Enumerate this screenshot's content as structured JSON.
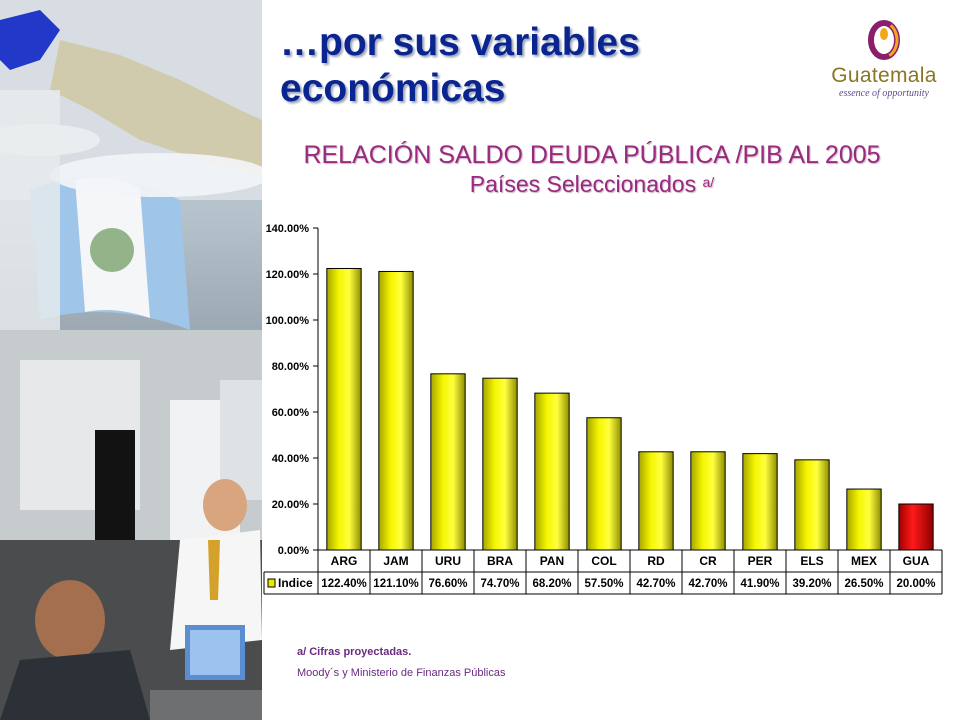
{
  "slide": {
    "title": "…por sus variables económicas",
    "logo_name": "Guatemala",
    "logo_tagline": "essence of opportunity",
    "colors": {
      "title": "#0b2590",
      "subtitle": "#9a2a7e",
      "bar": "#eaea00",
      "bar_highlight": "#e00000"
    }
  },
  "chart_data": {
    "type": "bar",
    "title": "RELACIÓN SALDO DEUDA PÚBLICA /PIB AL 2005",
    "subtitle": "Países Seleccionados",
    "subtitle_note": "a/",
    "categories": [
      "ARG",
      "JAM",
      "URU",
      "BRA",
      "PAN",
      "COL",
      "RD",
      "CR",
      "PER",
      "ELS",
      "MEX",
      "GUA"
    ],
    "series": [
      {
        "name": "Indice",
        "values": [
          122.4,
          121.1,
          76.6,
          74.7,
          68.2,
          57.5,
          42.7,
          42.7,
          41.9,
          39.2,
          26.5,
          20.0
        ],
        "labels": [
          "122.40%",
          "121.10%",
          "76.60%",
          "74.70%",
          "68.20%",
          "57.50%",
          "42.70%",
          "42.70%",
          "41.90%",
          "39.20%",
          "26.50%",
          "20.00%"
        ]
      }
    ],
    "highlight_category": "GUA",
    "ylim": [
      0,
      140
    ],
    "yticks": [
      "0.00%",
      "20.00%",
      "40.00%",
      "60.00%",
      "80.00%",
      "100.00%",
      "120.00%",
      "140.00%"
    ],
    "grid": false,
    "data_table": true
  },
  "footnotes": {
    "note": "a/ Cifras proyectadas.",
    "source": "Moody´s y Ministerio de Finanzas Públicas"
  }
}
